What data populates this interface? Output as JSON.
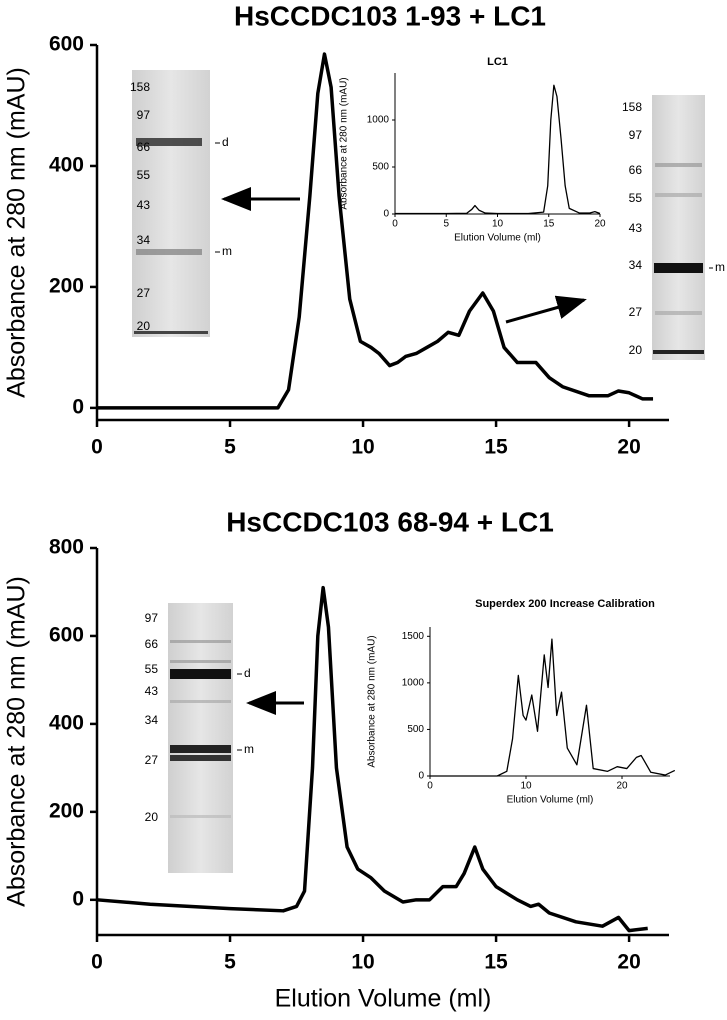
{
  "chart_data": [
    {
      "type": "line",
      "title": "HsCCDC103 1-93 + LC1",
      "y_label": "Absorbance at 280 nm (mAU)",
      "color": "#000000",
      "xlim": [
        0,
        21.5
      ],
      "ylim": [
        -20,
        600
      ],
      "xticks": [
        0,
        5,
        10,
        15,
        20
      ],
      "yticks": [
        0,
        200,
        400,
        600
      ],
      "x": [
        0,
        5,
        6.8,
        7.2,
        7.6,
        8,
        8.3,
        8.55,
        8.8,
        9.1,
        9.5,
        9.9,
        10.3,
        10.6,
        11,
        11.3,
        11.6,
        12,
        12.4,
        12.8,
        13.2,
        13.6,
        14,
        14.5,
        14.9,
        15.3,
        15.8,
        16.5,
        17,
        17.5,
        18.5,
        19.2,
        19.6,
        20,
        20.5,
        20.9
      ],
      "values": [
        0,
        0,
        0,
        30,
        150,
        350,
        520,
        585,
        530,
        350,
        180,
        110,
        100,
        90,
        70,
        75,
        85,
        90,
        100,
        110,
        125,
        120,
        160,
        190,
        160,
        100,
        75,
        75,
        50,
        35,
        20,
        20,
        28,
        25,
        15,
        15
      ],
      "gels": [
        {
          "markers": [
            "158",
            "97",
            "66",
            "55",
            "43",
            "34",
            "27",
            "20"
          ],
          "bands": [
            "d",
            "m"
          ]
        },
        {
          "markers": [
            "158",
            "97",
            "66",
            "55",
            "43",
            "34",
            "27",
            "20"
          ],
          "bands": [
            "m"
          ]
        }
      ]
    },
    {
      "type": "line",
      "title": "LC1",
      "x_label": "Elution Volume (ml)",
      "y_label": "Absorbance at 280 nm (mAU)",
      "color": "#000000",
      "xlim": [
        0,
        20
      ],
      "ylim": [
        0,
        1500
      ],
      "xticks": [
        0,
        5,
        10,
        15,
        20
      ],
      "yticks": [
        0,
        500,
        1000
      ],
      "x": [
        0,
        5,
        7,
        7.5,
        7.8,
        8.2,
        8.8,
        10,
        13,
        14.5,
        14.9,
        15.2,
        15.5,
        15.8,
        16.2,
        16.6,
        17,
        18,
        19,
        19.5,
        20
      ],
      "values": [
        5,
        5,
        8,
        50,
        90,
        40,
        10,
        5,
        5,
        20,
        300,
        1000,
        1370,
        1250,
        800,
        300,
        60,
        10,
        10,
        25,
        5
      ]
    },
    {
      "type": "line",
      "title": "HsCCDC103 68-94 + LC1",
      "x_label": "Elution Volume (ml)",
      "y_label": "Absorbance at 280 nm (mAU)",
      "color": "#000000",
      "xlim": [
        0,
        21.5
      ],
      "ylim": [
        -80,
        800
      ],
      "xticks": [
        0,
        5,
        10,
        15,
        20
      ],
      "yticks": [
        0,
        200,
        400,
        600,
        800
      ],
      "x": [
        0,
        2,
        5,
        7,
        7.5,
        7.8,
        8.1,
        8.3,
        8.5,
        8.7,
        9,
        9.4,
        9.8,
        10.3,
        10.8,
        11.5,
        12,
        12.5,
        13,
        13.5,
        13.8,
        14.2,
        14.5,
        15,
        15.8,
        16.3,
        16.6,
        17,
        18,
        19,
        19.6,
        20,
        20.7
      ],
      "values": [
        0,
        -10,
        -20,
        -25,
        -15,
        20,
        300,
        600,
        710,
        620,
        300,
        120,
        70,
        50,
        20,
        -5,
        0,
        0,
        30,
        30,
        60,
        120,
        70,
        30,
        0,
        -15,
        -10,
        -30,
        -50,
        -60,
        -40,
        -70,
        -65
      ],
      "gels": [
        {
          "markers": [
            "97",
            "66",
            "55",
            "43",
            "34",
            "27",
            "20"
          ],
          "bands": [
            "d",
            "m"
          ]
        }
      ]
    },
    {
      "type": "line",
      "title": "Superdex 200 Increase Calibration",
      "x_label": "Elution Volume (ml)",
      "y_label": "Absorbance at 280 nm (mAU)",
      "color": "#000000",
      "xlim": [
        0,
        25
      ],
      "ylim": [
        0,
        1600
      ],
      "xticks": [
        0,
        10,
        20
      ],
      "yticks": [
        0,
        500,
        1000,
        1500
      ],
      "x": [
        0,
        7,
        8,
        8.6,
        9.2,
        9.7,
        10,
        10.6,
        11.2,
        11.9,
        12.3,
        12.7,
        13.2,
        13.7,
        14.3,
        15.3,
        16.3,
        17,
        18.5,
        19.5,
        20.5,
        21.5,
        22,
        23,
        24.5,
        25.5
      ],
      "values": [
        0,
        0,
        50,
        400,
        1080,
        650,
        600,
        870,
        480,
        1300,
        950,
        1470,
        650,
        900,
        300,
        120,
        760,
        80,
        50,
        100,
        80,
        200,
        220,
        40,
        10,
        60
      ]
    }
  ]
}
